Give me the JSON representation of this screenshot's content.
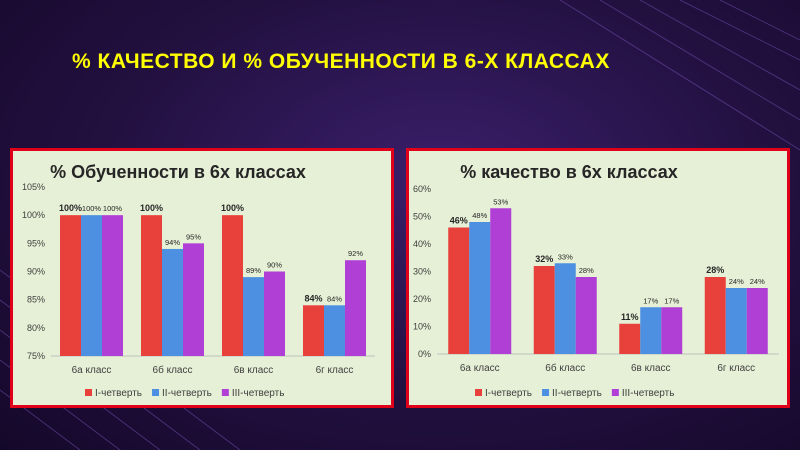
{
  "slide": {
    "title": "% КАЧЕСТВО И % ОБУЧЕННОСТИ В 6-Х КЛАССАХ"
  },
  "chart_data": [
    {
      "type": "bar",
      "title": "% Обученности в 6х классах",
      "categories": [
        "6а класс",
        "6б класс",
        "6в класс",
        "6г класс"
      ],
      "series": [
        {
          "name": "I-четверть",
          "color": "#e8403a",
          "values": [
            100,
            100,
            100,
            84
          ],
          "labels": [
            "100%",
            "100%",
            "100%",
            "84%"
          ]
        },
        {
          "name": "II-четверть",
          "color": "#4d8fe0",
          "values": [
            100,
            94,
            89,
            84
          ],
          "labels": [
            "100%",
            "94%",
            "89%",
            "84%"
          ]
        },
        {
          "name": "III-четверть",
          "color": "#b03fd6",
          "values": [
            100,
            95,
            90,
            92
          ],
          "labels": [
            "100%",
            "95%",
            "90%",
            "92%"
          ]
        }
      ],
      "ylim": [
        75,
        105
      ],
      "yticks": [
        75,
        80,
        85,
        90,
        95,
        100,
        105
      ],
      "ytick_labels": [
        "75%",
        "80%",
        "85%",
        "90%",
        "95%",
        "100%",
        "105%"
      ],
      "grid": false,
      "legend": "bottom"
    },
    {
      "type": "bar",
      "title": "% качество в 6х классах",
      "categories": [
        "6а класс",
        "6б класс",
        "6в класс",
        "6г класс"
      ],
      "series": [
        {
          "name": "I-четверть",
          "color": "#e8403a",
          "values": [
            46,
            32,
            11,
            28
          ],
          "labels": [
            "46%",
            "32%",
            "11%",
            "28%"
          ]
        },
        {
          "name": "II-четверть",
          "color": "#4d8fe0",
          "values": [
            48,
            33,
            17,
            24
          ],
          "labels": [
            "48%",
            "33%",
            "17%",
            "24%"
          ]
        },
        {
          "name": "III-четверть",
          "color": "#b03fd6",
          "values": [
            53,
            28,
            17,
            24
          ],
          "labels": [
            "53%",
            "28%",
            "17%",
            "24%"
          ]
        }
      ],
      "ylim": [
        0,
        60
      ],
      "yticks": [
        0,
        10,
        20,
        30,
        40,
        50,
        60
      ],
      "ytick_labels": [
        "0%",
        "10%",
        "20%",
        "30%",
        "40%",
        "50%",
        "60%"
      ],
      "grid": false,
      "legend": "bottom"
    }
  ]
}
